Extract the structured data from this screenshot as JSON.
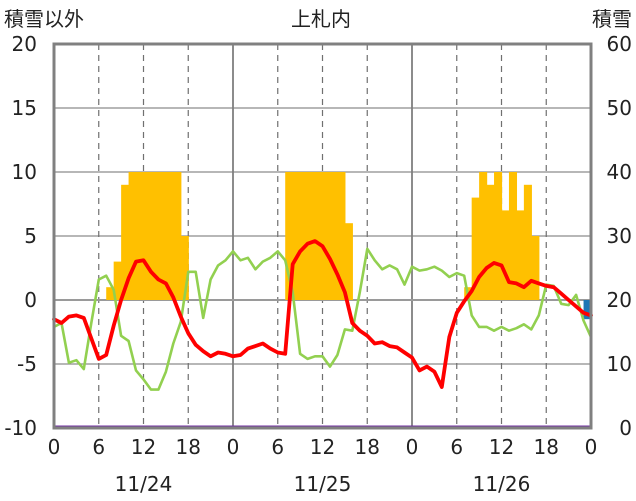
{
  "chart_data": {
    "type": "bar+line",
    "title": "上札内",
    "ylabel_left": "積雪以外",
    "ylabel_right": "積雪",
    "ylim_left": [
      -10,
      20
    ],
    "ylim_right": [
      0,
      60
    ],
    "yticks_left": [
      "20",
      "15",
      "10",
      "5",
      "0",
      "-5",
      "-10"
    ],
    "yticks_right": [
      "60",
      "50",
      "40",
      "30",
      "20",
      "10",
      "0"
    ],
    "xlim": [
      0,
      72
    ],
    "xticks": [
      "0",
      "6",
      "12",
      "18",
      "0",
      "6",
      "12",
      "18",
      "0",
      "6",
      "12",
      "18",
      "0"
    ],
    "date_labels": [
      "11/24",
      "11/25",
      "11/26"
    ],
    "grid": true,
    "colors": {
      "bars": "#FFC000",
      "line1": "#FF0000",
      "line2": "#92D050",
      "bottom_line": "#7030A0",
      "bar_negative": "#1F77B4",
      "frame": "#808080"
    },
    "bars_hourly": [
      0,
      0,
      0,
      0,
      0,
      0,
      0,
      1,
      3,
      9,
      10,
      10,
      10,
      10,
      10,
      10,
      10,
      5,
      0,
      0,
      0,
      0,
      0,
      0,
      0,
      0,
      0,
      0,
      0,
      0,
      0,
      10,
      10,
      10,
      10,
      10,
      10,
      10,
      10,
      6,
      0,
      0,
      0,
      0,
      0,
      0,
      0,
      0,
      0,
      0,
      0,
      0,
      0,
      0,
      0,
      1,
      8,
      10,
      9,
      10,
      7,
      10,
      7,
      9,
      5,
      0,
      0,
      0,
      0,
      0,
      0,
      -1.5
    ],
    "series": [
      {
        "role": "line1",
        "x": [
          0,
          1,
          2,
          3,
          4,
          5,
          6,
          7,
          8,
          9,
          10,
          11,
          12,
          13,
          14,
          15,
          16,
          17,
          18,
          19,
          20,
          21,
          22,
          23,
          24,
          25,
          26,
          27,
          28,
          29,
          30,
          31,
          32,
          33,
          34,
          35,
          36,
          37,
          38,
          39,
          40,
          41,
          42,
          43,
          44,
          45,
          46,
          47,
          48,
          49,
          50,
          51,
          52,
          53,
          54,
          55,
          56,
          57,
          58,
          59,
          60,
          61,
          62,
          63,
          64,
          65,
          66,
          67,
          68,
          69,
          70,
          71,
          72
        ],
        "values": [
          -1.5,
          -1.8,
          -1.3,
          -1.2,
          -1.4,
          -3,
          -4.6,
          -4.3,
          -2,
          0,
          1.7,
          3,
          3.1,
          2.2,
          1.6,
          1.3,
          0.2,
          -1.3,
          -2.6,
          -3.5,
          -4,
          -4.4,
          -4.1,
          -4.2,
          -4.4,
          -4.3,
          -3.8,
          -3.6,
          -3.4,
          -3.8,
          -4.1,
          -4.2,
          2.8,
          3.8,
          4.4,
          4.6,
          4.2,
          3.2,
          2,
          0.6,
          -1.8,
          -2.4,
          -2.8,
          -3.4,
          -3.3,
          -3.6,
          -3.7,
          -4.1,
          -4.5,
          -5.5,
          -5.2,
          -5.6,
          -6.8,
          -2.9,
          -1,
          -0.1,
          0.7,
          1.8,
          2.5,
          2.9,
          2.7,
          1.4,
          1.3,
          1,
          1.5,
          1.3,
          1.1,
          1,
          0.5,
          0,
          -0.5,
          -1,
          -1.2
        ]
      },
      {
        "role": "line2",
        "x": [
          0,
          1,
          2,
          3,
          4,
          5,
          6,
          7,
          8,
          9,
          10,
          11,
          12,
          13,
          14,
          15,
          16,
          17,
          18,
          19,
          20,
          21,
          22,
          23,
          24,
          25,
          26,
          27,
          28,
          29,
          30,
          31,
          32,
          33,
          34,
          35,
          36,
          37,
          38,
          39,
          40,
          41,
          42,
          43,
          44,
          45,
          46,
          47,
          48,
          49,
          50,
          51,
          52,
          53,
          54,
          55,
          56,
          57,
          58,
          59,
          60,
          61,
          62,
          63,
          64,
          65,
          66,
          67,
          68,
          69,
          70,
          71,
          72
        ],
        "values": [
          -2.1,
          -1.8,
          -4.9,
          -4.7,
          -5.4,
          -1.8,
          1.6,
          1.9,
          0.8,
          -2.8,
          -3.2,
          -5.5,
          -6.2,
          -7,
          -7,
          -5.6,
          -3.4,
          -1.7,
          2.2,
          2.2,
          -1.4,
          1.6,
          2.7,
          3.1,
          3.8,
          3.1,
          3.3,
          2.4,
          3,
          3.3,
          3.8,
          3.1,
          0.6,
          -4.2,
          -4.6,
          -4.4,
          -4.4,
          -5.2,
          -4.3,
          -2.3,
          -2.4,
          0.6,
          4,
          3.1,
          2.4,
          2.7,
          2.4,
          1.2,
          2.6,
          2.3,
          2.4,
          2.6,
          2.3,
          1.8,
          2.1,
          1.9,
          -1.2,
          -2.1,
          -2.1,
          -2.4,
          -2.1,
          -2.4,
          -2.2,
          -1.9,
          -2.3,
          -1.2,
          1.2,
          1.1,
          -0.3,
          -0.4,
          0.4,
          -1.6,
          -2.9
        ]
      }
    ]
  }
}
